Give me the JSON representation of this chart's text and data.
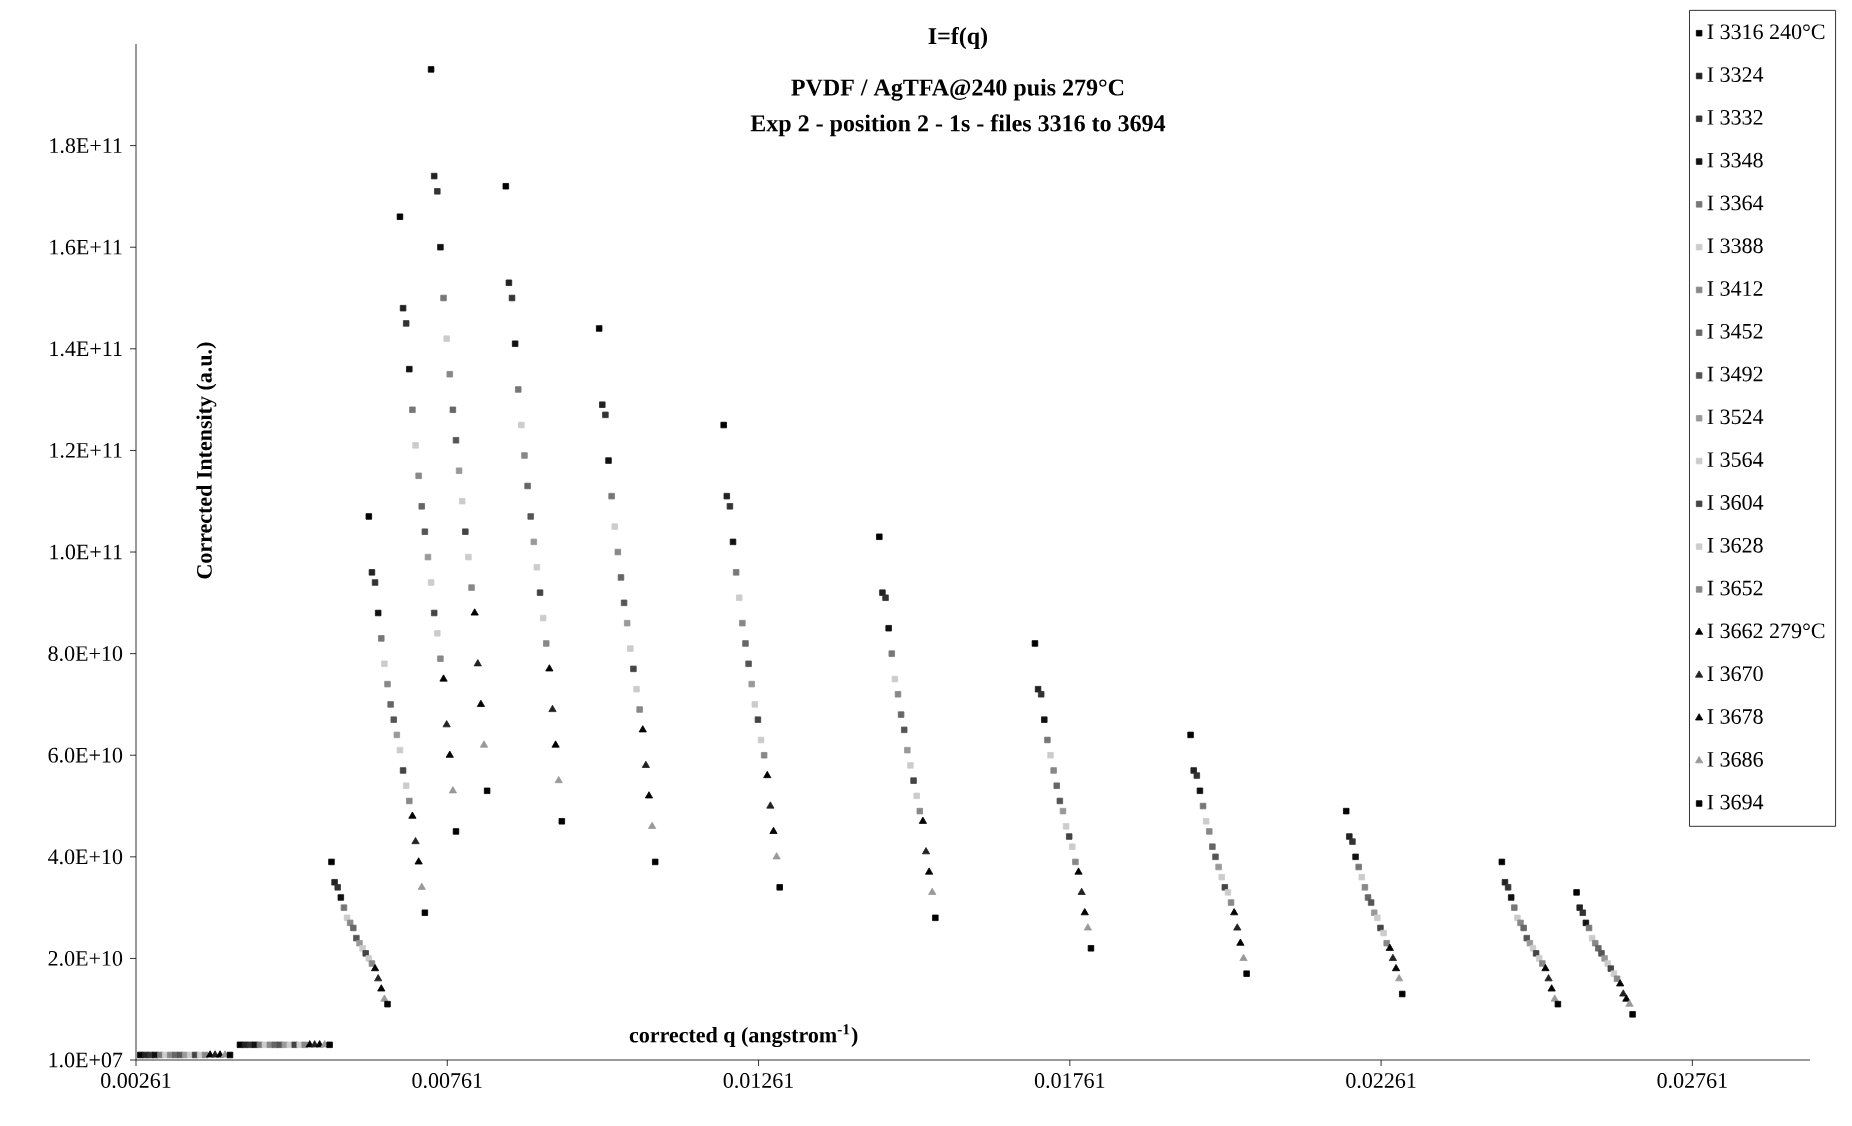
{
  "chart_data": {
    "type": "scatter",
    "title": "I=f(q)",
    "subtitle": "PVDF / AgTFA@240 puis 279°C",
    "annotations": [
      "Exp 2 - position 2 - 1s - files 3316 to 3694"
    ],
    "xlabel": "corrected q (angstrom$^{-1}$)",
    "ylabel": "Corrected Intensity (a.u.)",
    "series": [
      {
        "name": "I 3316 240°C",
        "color": "#000000",
        "marker": "square",
        "x": [
          0.00268,
          0.00428,
          0.00575,
          0.00635,
          0.00685,
          0.00735,
          0.00855,
          0.01005,
          0.01205,
          0.01455,
          0.01705,
          0.01955,
          0.02205,
          0.02455,
          0.02575
        ],
        "values": [
          1000000000.0,
          3000000000.0,
          39000000000.0,
          107000000000.0,
          166000000000.0,
          195000000000.0,
          172000000000.0,
          144000000000.0,
          125000000000.0,
          103000000000.0,
          82000000000.0,
          64000000000.0,
          49000000000.0,
          39000000000.0,
          33000000000.0
        ]
      },
      {
        "name": "I 3324",
        "color": "#222222",
        "marker": "square",
        "x": [
          0.00276,
          0.00436,
          0.0058,
          0.0064,
          0.0069,
          0.0074,
          0.0086,
          0.0101,
          0.0121,
          0.0146,
          0.0171,
          0.0196,
          0.0221,
          0.0246,
          0.0258
        ],
        "values": [
          1000000000.0,
          3000000000.0,
          35000000000.0,
          96000000000.0,
          148000000000.0,
          174000000000.0,
          153000000000.0,
          129000000000.0,
          111000000000.0,
          92000000000.0,
          73000000000.0,
          57000000000.0,
          44000000000.0,
          35000000000.0,
          30000000000.0
        ]
      },
      {
        "name": "I 3332",
        "color": "#333333",
        "marker": "square",
        "x": [
          0.00284,
          0.00444,
          0.00585,
          0.00645,
          0.00695,
          0.00745,
          0.00865,
          0.01015,
          0.01215,
          0.01465,
          0.01715,
          0.01965,
          0.02215,
          0.02465,
          0.02585
        ],
        "values": [
          1000000000.0,
          3000000000.0,
          34000000000.0,
          94000000000.0,
          145000000000.0,
          171000000000.0,
          150000000000.0,
          127000000000.0,
          109000000000.0,
          91000000000.0,
          72000000000.0,
          56000000000.0,
          43000000000.0,
          34000000000.0,
          29000000000.0
        ]
      },
      {
        "name": "I 3348",
        "color": "#111111",
        "marker": "square",
        "x": [
          0.00292,
          0.00452,
          0.0059,
          0.0065,
          0.007,
          0.0075,
          0.0087,
          0.0102,
          0.0122,
          0.0147,
          0.0172,
          0.0197,
          0.0222,
          0.0247,
          0.0259
        ],
        "values": [
          1000000000.0,
          3000000000.0,
          32000000000.0,
          88000000000.0,
          136000000000.0,
          160000000000.0,
          141000000000.0,
          118000000000.0,
          102000000000.0,
          85000000000.0,
          67000000000.0,
          53000000000.0,
          40000000000.0,
          32000000000.0,
          27000000000.0
        ]
      },
      {
        "name": "I 3364",
        "color": "#777777",
        "marker": "square",
        "x": [
          0.003,
          0.0046,
          0.00595,
          0.00655,
          0.00705,
          0.00755,
          0.00875,
          0.01025,
          0.01225,
          0.01475,
          0.01725,
          0.01975,
          0.02225,
          0.02475,
          0.02595
        ],
        "values": [
          1000000000.0,
          3000000000.0,
          30000000000.0,
          83000000000.0,
          128000000000.0,
          150000000000.0,
          132000000000.0,
          111000000000.0,
          96000000000.0,
          80000000000.0,
          63000000000.0,
          50000000000.0,
          38000000000.0,
          30000000000.0,
          26000000000.0
        ]
      },
      {
        "name": "I 3388",
        "color": "#cccccc",
        "marker": "square",
        "x": [
          0.00308,
          0.00468,
          0.006,
          0.0066,
          0.0071,
          0.0076,
          0.0088,
          0.0103,
          0.0123,
          0.0148,
          0.0173,
          0.0198,
          0.0223,
          0.0248,
          0.026
        ],
        "values": [
          1000000000.0,
          3000000000.0,
          28000000000.0,
          78000000000.0,
          121000000000.0,
          142000000000.0,
          125000000000.0,
          105000000000.0,
          91000000000.0,
          75000000000.0,
          60000000000.0,
          47000000000.0,
          36000000000.0,
          28000000000.0,
          24000000000.0
        ]
      },
      {
        "name": "I 3412",
        "color": "#888888",
        "marker": "square",
        "x": [
          0.00316,
          0.00476,
          0.00605,
          0.00665,
          0.00715,
          0.00765,
          0.00885,
          0.01035,
          0.01235,
          0.01485,
          0.01735,
          0.01985,
          0.02235,
          0.02485,
          0.02605
        ],
        "values": [
          1000000000.0,
          3000000000.0,
          27000000000.0,
          74000000000.0,
          115000000000.0,
          135000000000.0,
          119000000000.0,
          100000000000.0,
          86000000000.0,
          72000000000.0,
          57000000000.0,
          45000000000.0,
          34000000000.0,
          27000000000.0,
          23000000000.0
        ]
      },
      {
        "name": "I 3452",
        "color": "#666666",
        "marker": "square",
        "x": [
          0.00324,
          0.00484,
          0.0061,
          0.0067,
          0.0072,
          0.0077,
          0.0089,
          0.0104,
          0.0124,
          0.0149,
          0.0174,
          0.0199,
          0.0224,
          0.0249,
          0.0261
        ],
        "values": [
          1000000000.0,
          3000000000.0,
          26000000000.0,
          70000000000.0,
          109000000000.0,
          128000000000.0,
          113000000000.0,
          95000000000.0,
          82000000000.0,
          68000000000.0,
          54000000000.0,
          42000000000.0,
          32000000000.0,
          26000000000.0,
          22000000000.0
        ]
      },
      {
        "name": "I 3492",
        "color": "#555555",
        "marker": "square",
        "x": [
          0.00332,
          0.00492,
          0.00615,
          0.00675,
          0.00725,
          0.00775,
          0.00895,
          0.01045,
          0.01245,
          0.01495,
          0.01745,
          0.01995,
          0.02245,
          0.02495,
          0.02615
        ],
        "values": [
          1000000000.0,
          3000000000.0,
          24000000000.0,
          67000000000.0,
          104000000000.0,
          122000000000.0,
          107000000000.0,
          90000000000.0,
          78000000000.0,
          65000000000.0,
          51000000000.0,
          40000000000.0,
          31000000000.0,
          24000000000.0,
          21000000000.0
        ]
      },
      {
        "name": "I 3524",
        "color": "#999999",
        "marker": "square",
        "x": [
          0.0034,
          0.005,
          0.0062,
          0.0068,
          0.0073,
          0.0078,
          0.009,
          0.0105,
          0.0125,
          0.015,
          0.0175,
          0.02,
          0.0225,
          0.025,
          0.0262
        ],
        "values": [
          1000000000.0,
          3000000000.0,
          23000000000.0,
          64000000000.0,
          99000000000.0,
          116000000000.0,
          102000000000.0,
          86000000000.0,
          74000000000.0,
          61000000000.0,
          49000000000.0,
          38000000000.0,
          29000000000.0,
          23000000000.0,
          20000000000.0
        ]
      },
      {
        "name": "I 3564",
        "color": "#cccccc",
        "marker": "square",
        "x": [
          0.00348,
          0.00508,
          0.00625,
          0.00685,
          0.00735,
          0.00785,
          0.00905,
          0.01055,
          0.01255,
          0.01505,
          0.01755,
          0.02005,
          0.02255,
          0.02505,
          0.02625
        ],
        "values": [
          1000000000.0,
          3000000000.0,
          22000000000.0,
          61000000000.0,
          94000000000.0,
          110000000000.0,
          97000000000.0,
          81000000000.0,
          70000000000.0,
          58000000000.0,
          46000000000.0,
          36000000000.0,
          28000000000.0,
          22000000000.0,
          19000000000.0
        ]
      },
      {
        "name": "I 3604",
        "color": "#444444",
        "marker": "square",
        "x": [
          0.00356,
          0.00516,
          0.0063,
          0.0069,
          0.0074,
          0.0079,
          0.0091,
          0.0106,
          0.0126,
          0.0151,
          0.0176,
          0.0201,
          0.0226,
          0.0251,
          0.0263
        ],
        "values": [
          1000000000.0,
          3000000000.0,
          21000000000.0,
          57000000000.0,
          88000000000.0,
          104000000000.0,
          92000000000.0,
          77000000000.0,
          67000000000.0,
          55000000000.0,
          44000000000.0,
          34000000000.0,
          26000000000.0,
          21000000000.0,
          18000000000.0
        ]
      },
      {
        "name": "I 3628",
        "color": "#cccccc",
        "marker": "square",
        "x": [
          0.00364,
          0.00524,
          0.00635,
          0.00695,
          0.00745,
          0.00795,
          0.00915,
          0.01065,
          0.01265,
          0.01515,
          0.01765,
          0.02015,
          0.02265,
          0.02515,
          0.02635
        ],
        "values": [
          1000000000.0,
          3000000000.0,
          20000000000.0,
          54000000000.0,
          84000000000.0,
          99000000000.0,
          87000000000.0,
          73000000000.0,
          63000000000.0,
          52000000000.0,
          42000000000.0,
          33000000000.0,
          25000000000.0,
          20000000000.0,
          17000000000.0
        ]
      },
      {
        "name": "I 3652",
        "color": "#888888",
        "marker": "square",
        "x": [
          0.00372,
          0.00532,
          0.0064,
          0.007,
          0.0075,
          0.008,
          0.0092,
          0.0107,
          0.0127,
          0.0152,
          0.0177,
          0.0202,
          0.0227,
          0.0252,
          0.0264
        ],
        "values": [
          1000000000.0,
          3000000000.0,
          19000000000.0,
          51000000000.0,
          79000000000.0,
          93000000000.0,
          82000000000.0,
          69000000000.0,
          60000000000.0,
          49000000000.0,
          39000000000.0,
          31000000000.0,
          23000000000.0,
          19000000000.0,
          16000000000.0
        ]
      },
      {
        "name": "I 3662 279°C",
        "color": "#000000",
        "marker": "triangle",
        "x": [
          0.0038,
          0.0054,
          0.00645,
          0.00705,
          0.00755,
          0.00805,
          0.00925,
          0.01075,
          0.01275,
          0.01525,
          0.01775,
          0.02025,
          0.02275,
          0.02525,
          0.02645
        ],
        "values": [
          1000000000.0,
          3000000000.0,
          18000000000.0,
          48000000000.0,
          75000000000.0,
          88000000000.0,
          77000000000.0,
          65000000000.0,
          56000000000.0,
          47000000000.0,
          37000000000.0,
          29000000000.0,
          22000000000.0,
          18000000000.0,
          15000000000.0
        ]
      },
      {
        "name": "I 3670",
        "color": "#222222",
        "marker": "triangle",
        "x": [
          0.00388,
          0.00548,
          0.0065,
          0.0071,
          0.0076,
          0.0081,
          0.0093,
          0.0108,
          0.0128,
          0.0153,
          0.0178,
          0.0203,
          0.0228,
          0.0253,
          0.0265
        ],
        "values": [
          1000000000.0,
          3000000000.0,
          16000000000.0,
          43000000000.0,
          66000000000.0,
          78000000000.0,
          69000000000.0,
          58000000000.0,
          50000000000.0,
          41000000000.0,
          33000000000.0,
          26000000000.0,
          20000000000.0,
          16000000000.0,
          13000000000.0
        ]
      },
      {
        "name": "I 3678",
        "color": "#000000",
        "marker": "triangle",
        "x": [
          0.00396,
          0.00556,
          0.00655,
          0.00715,
          0.00765,
          0.00815,
          0.00935,
          0.01085,
          0.01285,
          0.01535,
          0.01785,
          0.02035,
          0.02285,
          0.02535,
          0.02655
        ],
        "values": [
          1000000000.0,
          3000000000.0,
          14000000000.0,
          39000000000.0,
          60000000000.0,
          70000000000.0,
          62000000000.0,
          52000000000.0,
          45000000000.0,
          37000000000.0,
          29000000000.0,
          23000000000.0,
          18000000000.0,
          14000000000.0,
          12000000000.0
        ]
      },
      {
        "name": "I 3686",
        "color": "#999999",
        "marker": "triangle",
        "x": [
          0.00404,
          0.00564,
          0.0066,
          0.0072,
          0.0077,
          0.0082,
          0.0094,
          0.0109,
          0.0129,
          0.0154,
          0.0179,
          0.0204,
          0.0229,
          0.0254,
          0.0266
        ],
        "values": [
          1000000000.0,
          3000000000.0,
          12000000000.0,
          34000000000.0,
          53000000000.0,
          62000000000.0,
          55000000000.0,
          46000000000.0,
          40000000000.0,
          33000000000.0,
          26000000000.0,
          20000000000.0,
          16000000000.0,
          12000000000.0,
          11000000000.0
        ]
      },
      {
        "name": "I 3694",
        "color": "#000000",
        "marker": "square",
        "x": [
          0.00412,
          0.00572,
          0.00665,
          0.00725,
          0.00775,
          0.00825,
          0.00945,
          0.01095,
          0.01295,
          0.01545,
          0.01795,
          0.02045,
          0.02295,
          0.02545,
          0.02665
        ],
        "values": [
          1000000000.0,
          3000000000.0,
          11000000000.0,
          29000000000.0,
          45000000000.0,
          53000000000.0,
          47000000000.0,
          39000000000.0,
          34000000000.0,
          28000000000.0,
          22000000000.0,
          17000000000.0,
          13000000000.0,
          11000000000.0,
          9000000000.0
        ]
      }
    ],
    "xlim": [
      0.00261,
      0.0295
    ],
    "ylim": [
      10000000.0,
      200000000000.0
    ],
    "xticks": [
      0.00261,
      0.00761,
      0.01261,
      0.01761,
      0.02261,
      0.02761
    ],
    "yticks": [
      {
        "value": 10000000.0,
        "label": "1.0E+07"
      },
      {
        "value": 20000000000.0,
        "label": "2.0E+10"
      },
      {
        "value": 40000000000.0,
        "label": "4.0E+10"
      },
      {
        "value": 60000000000.0,
        "label": "6.0E+10"
      },
      {
        "value": 80000000000.0,
        "label": "8.0E+10"
      },
      {
        "value": 100000000000.0,
        "label": "1.0E+11"
      },
      {
        "value": 120000000000.0,
        "label": "1.2E+11"
      },
      {
        "value": 140000000000.0,
        "label": "1.4E+11"
      },
      {
        "value": 160000000000.0,
        "label": "1.6E+11"
      },
      {
        "value": 180000000000.0,
        "label": "1.8E+11"
      }
    ],
    "grid": false,
    "legend": "right"
  }
}
